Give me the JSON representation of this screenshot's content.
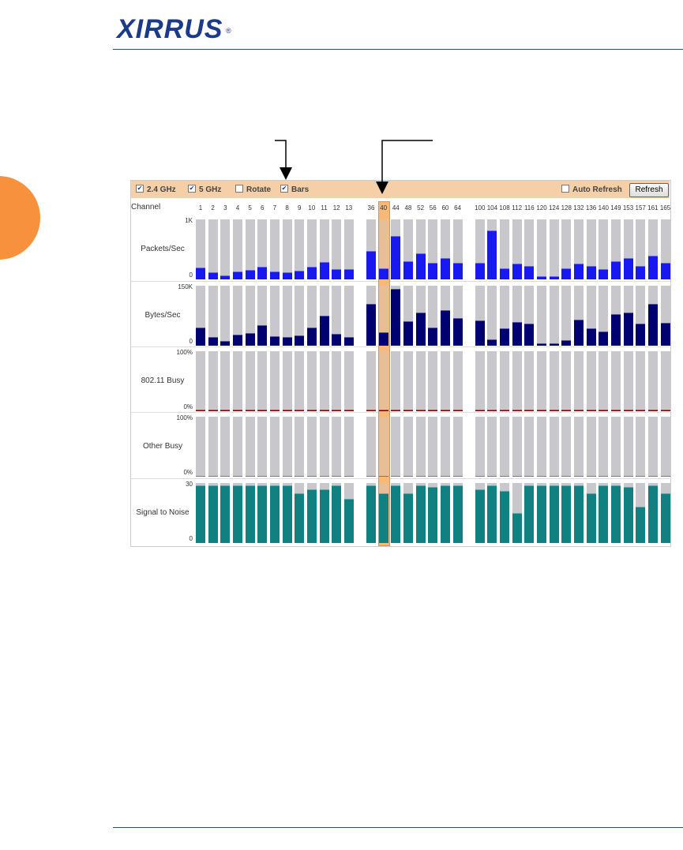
{
  "header": {
    "logo": "XIRRUS",
    "logo_mark": "®"
  },
  "toolbar": {
    "checkboxes": [
      {
        "label": "2.4 GHz",
        "checked": true
      },
      {
        "label": "5 GHz",
        "checked": true
      },
      {
        "label": "Rotate",
        "checked": false
      },
      {
        "label": "Bars",
        "checked": true
      }
    ],
    "auto_refresh": {
      "label": "Auto Refresh",
      "checked": false
    },
    "button": "Refresh"
  },
  "channel_label": "Channel",
  "channels": [
    1,
    2,
    3,
    4,
    5,
    6,
    7,
    8,
    9,
    10,
    11,
    12,
    13,
    36,
    40,
    44,
    48,
    52,
    56,
    60,
    64,
    100,
    104,
    108,
    112,
    116,
    120,
    124,
    128,
    132,
    136,
    140,
    149,
    153,
    157,
    161,
    165
  ],
  "selected_channel": 40,
  "rows": [
    {
      "label": "Packets/Sec",
      "color": "#1818f0",
      "ylim": [
        0,
        1000
      ],
      "yticks": [
        0,
        {
          "value": 1000,
          "label": "1K"
        }
      ],
      "values": [
        200,
        120,
        60,
        130,
        160,
        210,
        130,
        120,
        140,
        210,
        290,
        170,
        170,
        470,
        180,
        730,
        300,
        430,
        270,
        360,
        270,
        270,
        820,
        190,
        260,
        230,
        50,
        50,
        180,
        260,
        230,
        170,
        300,
        360,
        230,
        400,
        270
      ]
    },
    {
      "label": "Bytes/Sec",
      "color": "#000070",
      "ylim": [
        0,
        150000
      ],
      "yticks": [
        0,
        {
          "value": 150000,
          "label": "150K"
        }
      ],
      "values": [
        45000,
        22000,
        12000,
        28000,
        32000,
        51000,
        24000,
        22000,
        26000,
        45000,
        75000,
        30000,
        22000,
        105000,
        34000,
        142000,
        61000,
        83000,
        45000,
        89000,
        69000,
        63000,
        16000,
        43000,
        59000,
        55000,
        6000,
        6000,
        14000,
        65000,
        43000,
        36000,
        79000,
        83000,
        55000,
        105000,
        57000
      ]
    },
    {
      "label": "802.11 Busy",
      "color": "#800000",
      "ylim": [
        0,
        100
      ],
      "yticks": [
        {
          "value": 0,
          "label": "0%"
        },
        {
          "value": 100,
          "label": "100%"
        }
      ],
      "values": [
        2,
        2,
        2,
        2,
        2,
        2,
        2,
        2,
        2,
        2,
        2,
        2,
        2,
        2,
        2,
        2,
        2,
        2,
        2,
        2,
        2,
        2,
        2,
        2,
        2,
        2,
        2,
        2,
        2,
        2,
        2,
        2,
        2,
        2,
        2,
        2,
        2
      ]
    },
    {
      "label": "Other Busy",
      "color": "#303050",
      "ylim": [
        0,
        100
      ],
      "yticks": [
        {
          "value": 0,
          "label": "0%"
        },
        {
          "value": 100,
          "label": "100%"
        }
      ],
      "values": [
        1,
        1,
        1,
        1,
        1,
        1,
        1,
        1,
        1,
        1,
        1,
        1,
        1,
        1,
        1,
        1,
        1,
        1,
        1,
        1,
        1,
        1,
        1,
        1,
        1,
        1,
        1,
        1,
        1,
        1,
        1,
        1,
        1,
        1,
        1,
        1,
        1
      ]
    },
    {
      "label": "Signal to Noise",
      "color": "#108080",
      "ylim": [
        0,
        30
      ],
      "yticks": [
        0,
        30
      ],
      "values": [
        29,
        29,
        29,
        29,
        29,
        29,
        29,
        29,
        25,
        27,
        27,
        29,
        22,
        29,
        25,
        29,
        25,
        29,
        28,
        29,
        29,
        27,
        29,
        26,
        15,
        29,
        29,
        29,
        29,
        29,
        25,
        29,
        29,
        28,
        18,
        29,
        25
      ]
    }
  ]
}
